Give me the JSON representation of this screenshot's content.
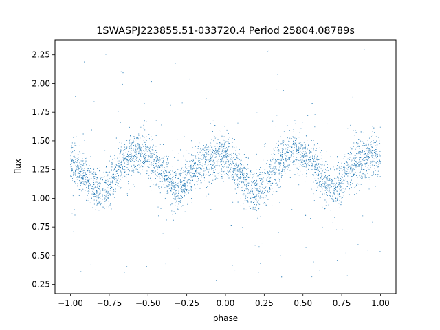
{
  "chart_data": {
    "type": "scatter",
    "title": "1SWASPJ223855.51-033720.4 Period 25804.08789s",
    "xlabel": "phase",
    "ylabel": "flux",
    "xlim": [
      -1.1,
      1.1
    ],
    "ylim": [
      0.17,
      2.38
    ],
    "x_ticks": [
      -1.0,
      -0.75,
      -0.5,
      -0.25,
      0.0,
      0.25,
      0.5,
      0.75,
      1.0
    ],
    "x_tick_labels": [
      "−1.00",
      "−0.75",
      "−0.50",
      "−0.25",
      "0.00",
      "0.25",
      "0.50",
      "0.75",
      "1.00"
    ],
    "y_ticks": [
      0.25,
      0.5,
      0.75,
      1.0,
      1.25,
      1.5,
      1.75,
      2.0,
      2.25
    ],
    "y_tick_labels": [
      "0.25",
      "0.50",
      "0.75",
      "1.00",
      "1.25",
      "1.50",
      "1.75",
      "2.00",
      "2.25"
    ],
    "point_color": "#1f77b4",
    "grid": false,
    "series": [
      {
        "phase_range": [
          -1.0,
          1.0
        ],
        "profile": [
          {
            "x": -1.0,
            "y": 1.33
          },
          {
            "x": -0.92,
            "y": 1.22
          },
          {
            "x": -0.85,
            "y": 1.1
          },
          {
            "x": -0.8,
            "y": 1.03
          },
          {
            "x": -0.75,
            "y": 1.12
          },
          {
            "x": -0.68,
            "y": 1.28
          },
          {
            "x": -0.62,
            "y": 1.38
          },
          {
            "x": -0.55,
            "y": 1.4
          },
          {
            "x": -0.47,
            "y": 1.34
          },
          {
            "x": -0.4,
            "y": 1.22
          },
          {
            "x": -0.33,
            "y": 1.09
          },
          {
            "x": -0.28,
            "y": 1.1
          },
          {
            "x": -0.2,
            "y": 1.25
          },
          {
            "x": -0.12,
            "y": 1.33
          },
          {
            "x": -0.05,
            "y": 1.38
          },
          {
            "x": 0.0,
            "y": 1.35
          },
          {
            "x": 0.08,
            "y": 1.22
          },
          {
            "x": 0.15,
            "y": 1.1
          },
          {
            "x": 0.2,
            "y": 1.03
          },
          {
            "x": 0.25,
            "y": 1.12
          },
          {
            "x": 0.32,
            "y": 1.28
          },
          {
            "x": 0.38,
            "y": 1.38
          },
          {
            "x": 0.45,
            "y": 1.4
          },
          {
            "x": 0.53,
            "y": 1.34
          },
          {
            "x": 0.6,
            "y": 1.22
          },
          {
            "x": 0.67,
            "y": 1.09
          },
          {
            "x": 0.72,
            "y": 1.1
          },
          {
            "x": 0.8,
            "y": 1.25
          },
          {
            "x": 0.88,
            "y": 1.33
          },
          {
            "x": 0.95,
            "y": 1.38
          },
          {
            "x": 1.0,
            "y": 1.35
          }
        ],
        "scatter_sigma": 0.09,
        "outlier_range": [
          0.28,
          2.3
        ]
      }
    ]
  }
}
